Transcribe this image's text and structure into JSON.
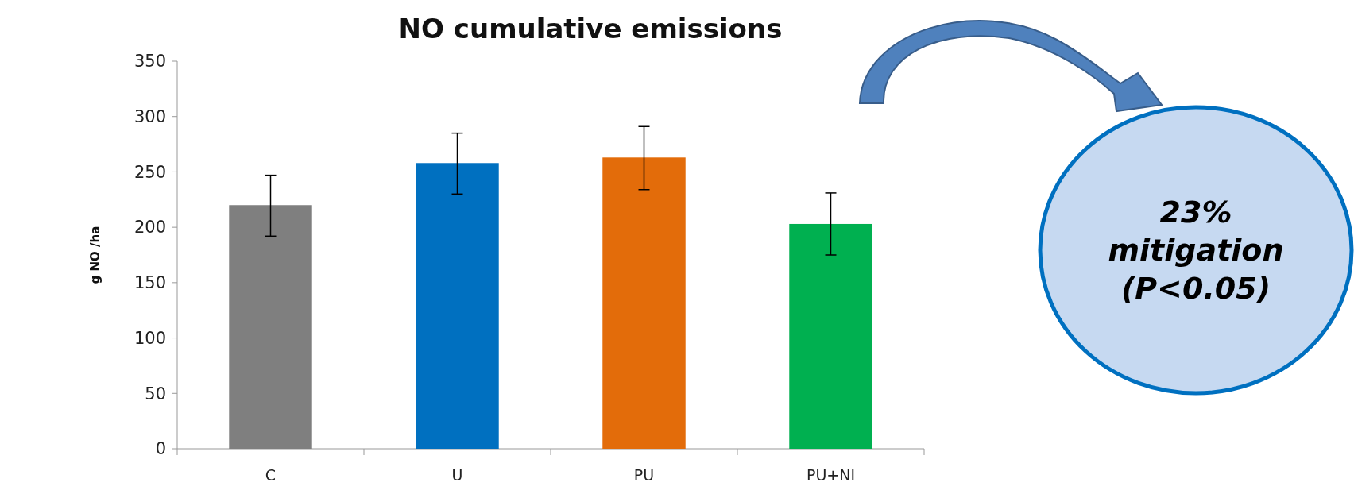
{
  "chart_data": {
    "type": "bar",
    "title": "NO cumulative emissions",
    "ylabel": "g NO /ha",
    "categories": [
      "C",
      "U",
      "PU",
      "PU+NI"
    ],
    "values": [
      220,
      258,
      263,
      203
    ],
    "colors": [
      "#7f7f7f",
      "#0070c0",
      "#e36c0a",
      "#00b050"
    ],
    "errors": [
      [
        192,
        247
      ],
      [
        230,
        285
      ],
      [
        234,
        291
      ],
      [
        175,
        231
      ]
    ],
    "ylim": [
      0,
      350
    ],
    "yticks": [
      0,
      50,
      100,
      150,
      200,
      250,
      300,
      350
    ],
    "annotations": [
      "23% mitigation (P<0.05)"
    ]
  }
}
